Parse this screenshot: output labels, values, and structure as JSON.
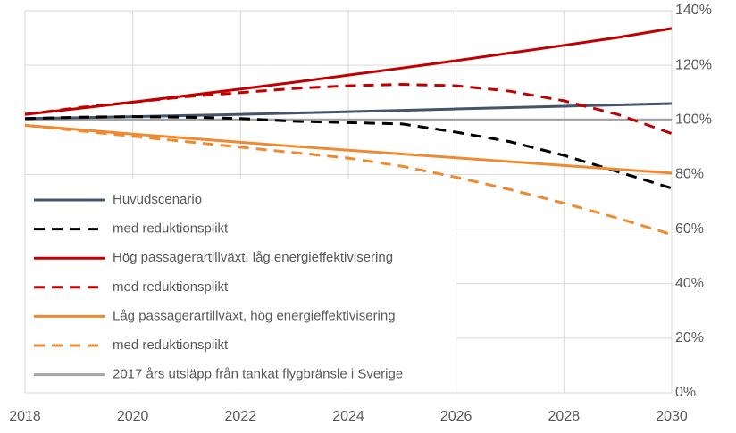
{
  "chart_data": {
    "type": "line",
    "x": [
      2018,
      2019,
      2020,
      2021,
      2022,
      2023,
      2024,
      2025,
      2026,
      2027,
      2028,
      2029,
      2030
    ],
    "xlim": [
      2018,
      2030
    ],
    "xticks": [
      2018,
      2020,
      2022,
      2024,
      2026,
      2028,
      2030
    ],
    "ylim": [
      0,
      140
    ],
    "yticks": [
      {
        "value": 0,
        "label": "0%"
      },
      {
        "value": 20,
        "label": "20%"
      },
      {
        "value": 40,
        "label": "40%"
      },
      {
        "value": 60,
        "label": "60%"
      },
      {
        "value": 80,
        "label": "80%"
      },
      {
        "value": 100,
        "label": "100%"
      },
      {
        "value": 120,
        "label": "120%"
      },
      {
        "value": 140,
        "label": "140%"
      }
    ],
    "grid": true,
    "legend": "lower left",
    "series": [
      {
        "name": "Huvudscenario",
        "color": "#44546a",
        "dashed": false,
        "values": [
          100.5,
          100.8,
          101.2,
          101.6,
          102.0,
          102.5,
          103.0,
          103.5,
          104.0,
          104.5,
          105.0,
          105.5,
          106.0
        ]
      },
      {
        "name": "med reduktionsplikt",
        "color": "#000000",
        "dashed": true,
        "values": [
          100.5,
          101,
          101.2,
          101,
          100.5,
          99.5,
          99,
          98.5,
          95.5,
          92,
          87,
          81,
          75
        ]
      },
      {
        "name": "Hög passagerartillväxt, låg energieffektivisering",
        "color": "#c00000",
        "dashed": false,
        "values": [
          102,
          104.2,
          106.5,
          108.9,
          111.3,
          113.8,
          116.4,
          119,
          121.7,
          124.5,
          127.3,
          130.2,
          133.5
        ]
      },
      {
        "name": "med reduktionsplikt",
        "color": "#c00000",
        "dashed": true,
        "values": [
          102,
          104.5,
          106.5,
          108.5,
          110,
          111.5,
          112.5,
          113,
          112.5,
          110.5,
          107,
          102,
          95
        ]
      },
      {
        "name": "Låg passagerartillväxt, hög energieffektivisering",
        "color": "#f08a30",
        "dashed": false,
        "values": [
          98,
          96.4,
          94.8,
          93.3,
          91.8,
          90.3,
          88.9,
          87.5,
          86.1,
          84.7,
          83.3,
          81.9,
          80.5
        ]
      },
      {
        "name": "med reduktionsplikt",
        "color": "#f08a30",
        "dashed": true,
        "values": [
          98,
          96,
          94,
          92,
          90,
          88,
          86,
          83,
          79,
          74.5,
          69.5,
          64,
          58
        ]
      },
      {
        "name": "2017 års utsläpp från tankat flygbränsle i Sverige",
        "color": "#a5a5a5",
        "dashed": false,
        "values": [
          100,
          100,
          100,
          100,
          100,
          100,
          100,
          100,
          100,
          100,
          100,
          100,
          100
        ]
      }
    ]
  }
}
